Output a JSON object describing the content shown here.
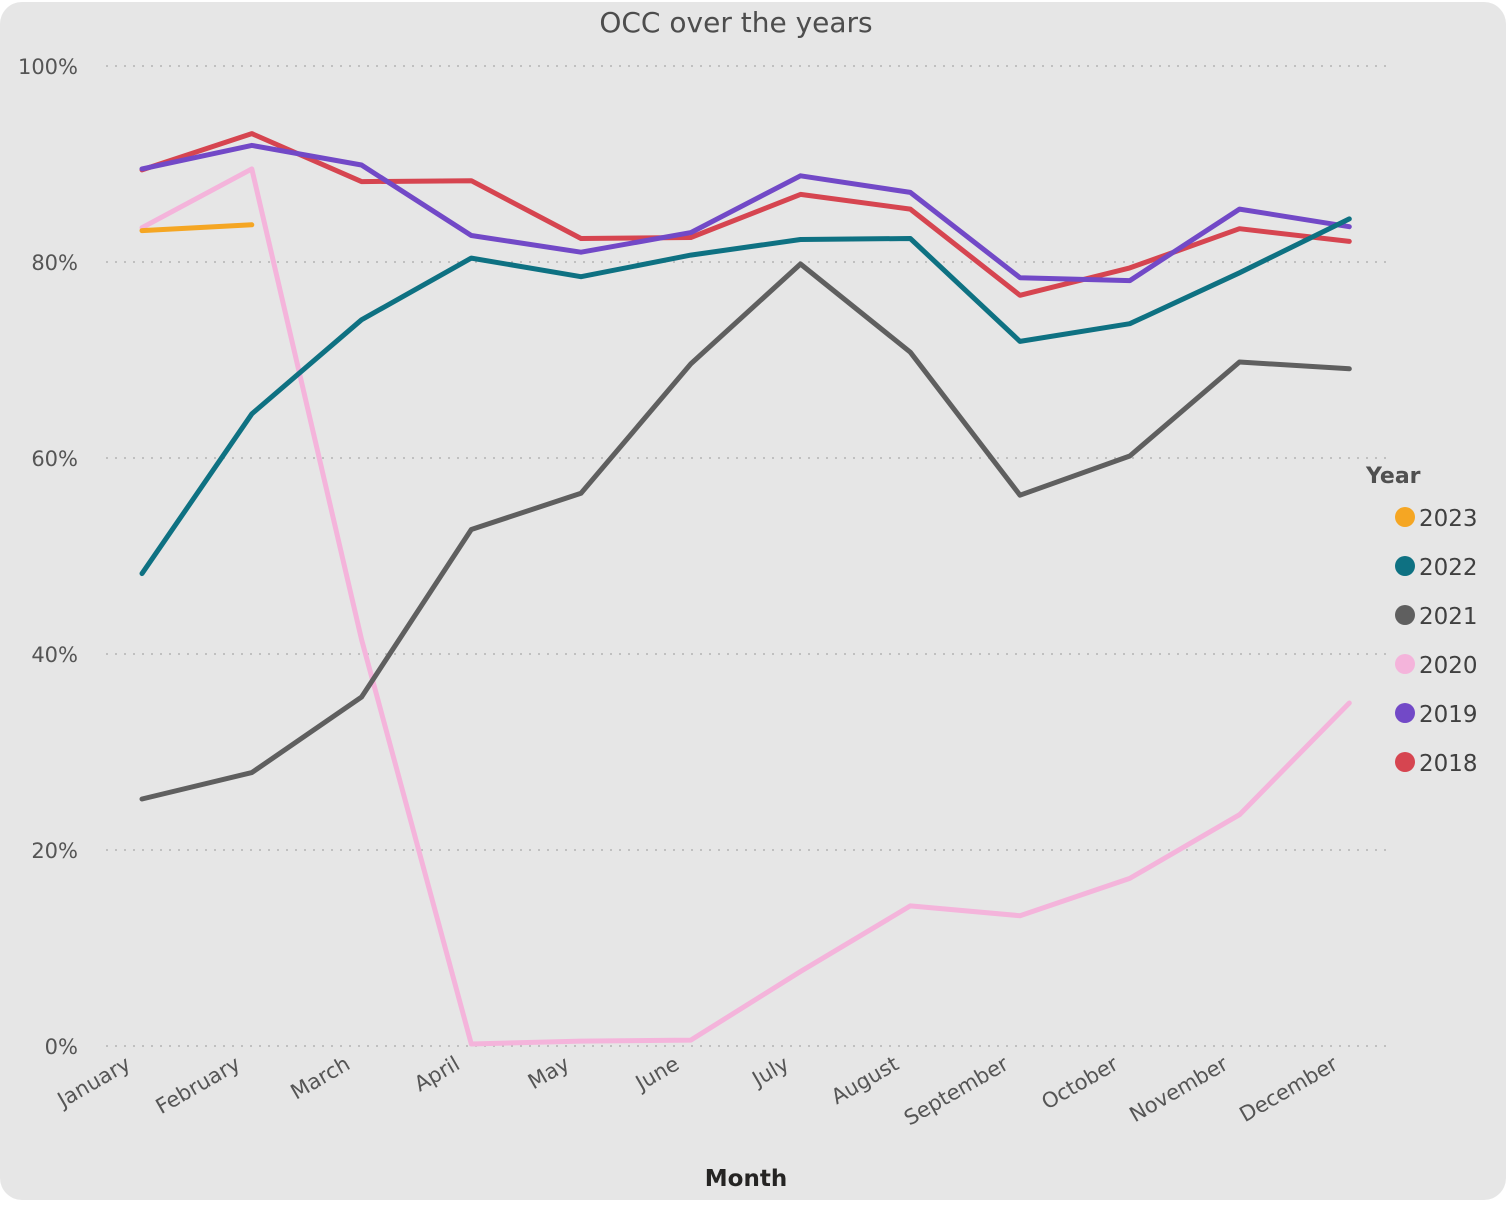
{
  "chart_data": {
    "type": "line",
    "title": "OCC over the years",
    "xlabel": "Month",
    "ylabel": "",
    "ylim": [
      0,
      100
    ],
    "y_tick_values": [
      0,
      20,
      40,
      60,
      80,
      100
    ],
    "y_tick_labels": [
      "0%",
      "20%",
      "40%",
      "60%",
      "80%",
      "100%"
    ],
    "grid": "horizontal-dotted",
    "legend_title": "Year",
    "legend_position": "right",
    "categories": [
      "January",
      "February",
      "March",
      "April",
      "May",
      "June",
      "July",
      "August",
      "September",
      "October",
      "November",
      "December"
    ],
    "series": [
      {
        "name": "2023",
        "color": "#f5a623",
        "values": [
          83.2,
          83.8,
          null,
          null,
          null,
          null,
          null,
          null,
          null,
          null,
          null,
          null
        ]
      },
      {
        "name": "2022",
        "color": "#0e7182",
        "values": [
          48.2,
          64.5,
          74.1,
          80.4,
          78.5,
          80.7,
          82.3,
          82.4,
          71.9,
          73.7,
          78.9,
          84.4
        ]
      },
      {
        "name": "2021",
        "color": "#5f5f5f",
        "values": [
          25.2,
          27.9,
          35.6,
          52.7,
          56.4,
          69.6,
          79.8,
          70.8,
          56.2,
          60.2,
          69.8,
          69.1
        ]
      },
      {
        "name": "2020",
        "color": "#f4b4db",
        "values": [
          83.5,
          89.5,
          41.5,
          0.2,
          0.5,
          0.6,
          7.6,
          14.3,
          13.3,
          17.1,
          23.6,
          35.0
        ]
      },
      {
        "name": "2019",
        "color": "#7249c7",
        "values": [
          89.5,
          91.9,
          89.9,
          82.7,
          81.0,
          83.0,
          88.8,
          87.1,
          78.4,
          78.1,
          85.4,
          83.6
        ]
      },
      {
        "name": "2018",
        "color": "#d64550",
        "values": [
          89.4,
          93.1,
          88.2,
          88.3,
          82.4,
          82.5,
          86.9,
          85.4,
          76.6,
          79.4,
          83.4,
          82.1
        ]
      }
    ]
  }
}
